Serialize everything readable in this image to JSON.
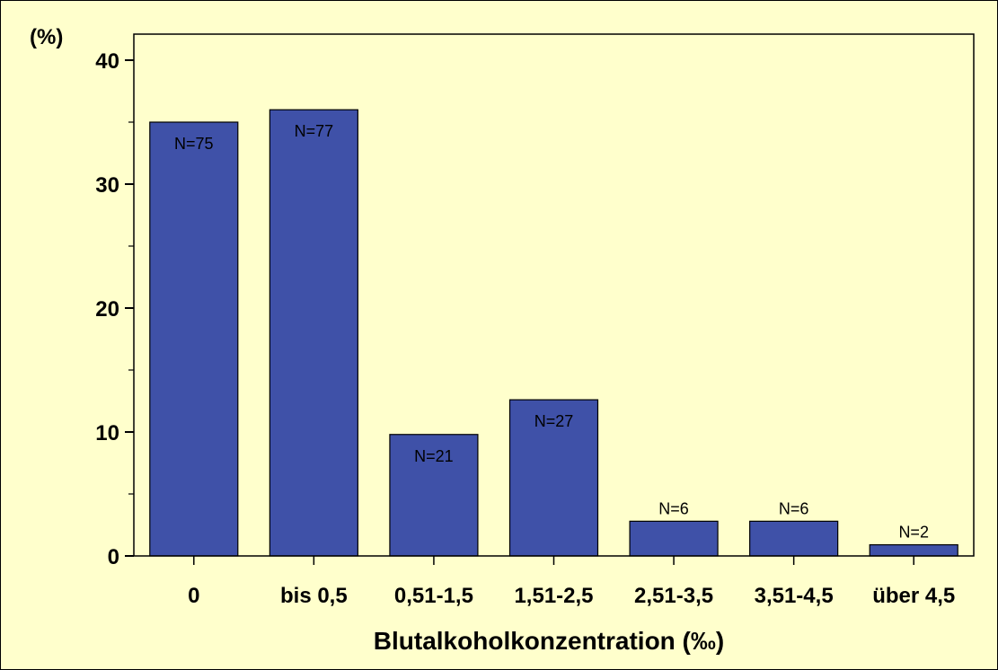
{
  "chart_data": {
    "type": "bar",
    "y_unit_label": "(%)",
    "xlabel": "Blutalkoholkonzentration (‰)",
    "ylabel": "",
    "ylim": [
      0,
      40
    ],
    "yticks": [
      0,
      10,
      20,
      30,
      40
    ],
    "grid": false,
    "bar_color": "#3f51a8",
    "background_color": "#ffffcc",
    "categories": [
      "0",
      "bis 0,5",
      "0,51-1,5",
      "1,51-2,5",
      "2,51-3,5",
      "3,51-4,5",
      "über 4,5"
    ],
    "values": [
      35.0,
      36.0,
      9.8,
      12.6,
      2.8,
      2.8,
      0.9
    ],
    "data_labels": [
      "N=75",
      "N=77",
      "N=21",
      "N=27",
      "N=6",
      "N=6",
      "N=2"
    ]
  }
}
